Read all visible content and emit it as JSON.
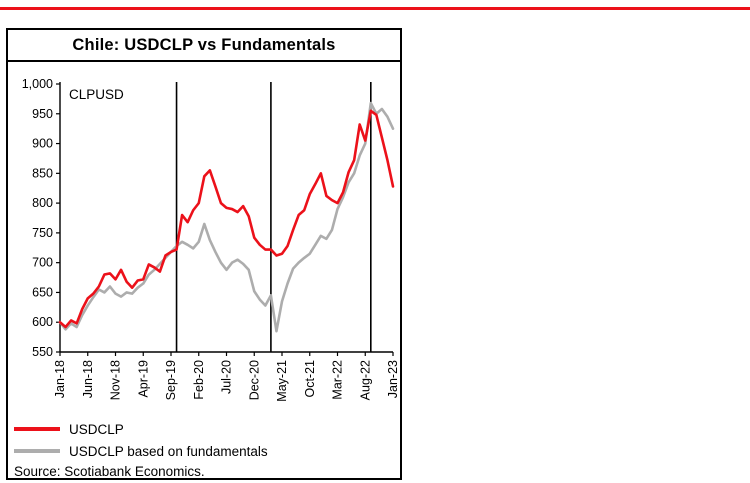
{
  "colors": {
    "red": "#EC111A",
    "gray": "#ADADAD",
    "black": "#000000"
  },
  "header": {
    "title": "Chile: USDCLP vs Fundamentals"
  },
  "legend": [
    {
      "label": "USDCLP"
    },
    {
      "label": "USDCLP based on fundamentals"
    }
  ],
  "source": "Source: Scotiabank Economics.",
  "chart_data": {
    "type": "line",
    "title": "Chile: USDCLP vs Fundamentals",
    "ylabel": "CLPUSD",
    "ylim": [
      550,
      1000
    ],
    "grid": false,
    "legend_position": "bottom-left",
    "ytick_values": [
      550,
      600,
      650,
      700,
      750,
      800,
      850,
      900,
      950,
      1000
    ],
    "ytick_labels": [
      "550",
      "600",
      "650",
      "700",
      "750",
      "800",
      "850",
      "900",
      "950",
      "1,000"
    ],
    "x": [
      "Jan-18",
      "Feb-18",
      "Mar-18",
      "Apr-18",
      "May-18",
      "Jun-18",
      "Jul-18",
      "Aug-18",
      "Sep-18",
      "Oct-18",
      "Nov-18",
      "Dec-18",
      "Jan-19",
      "Feb-19",
      "Mar-19",
      "Apr-19",
      "May-19",
      "Jun-19",
      "Jul-19",
      "Aug-19",
      "Sep-19",
      "Oct-19",
      "Nov-19",
      "Dec-19",
      "Jan-20",
      "Feb-20",
      "Mar-20",
      "Apr-20",
      "May-20",
      "Jun-20",
      "Jul-20",
      "Aug-20",
      "Sep-20",
      "Oct-20",
      "Nov-20",
      "Dec-20",
      "Jan-21",
      "Feb-21",
      "Mar-21",
      "Apr-21",
      "May-21",
      "Jun-21",
      "Jul-21",
      "Aug-21",
      "Sep-21",
      "Oct-21",
      "Nov-21",
      "Dec-21",
      "Jan-22",
      "Feb-22",
      "Mar-22",
      "Apr-22",
      "May-22",
      "Jun-22",
      "Jul-22",
      "Aug-22",
      "Sep-22",
      "Oct-22",
      "Nov-22",
      "Dec-22",
      "Jan-23"
    ],
    "xtick_indices": [
      0,
      5,
      10,
      15,
      20,
      25,
      30,
      35,
      40,
      45,
      50,
      55,
      60
    ],
    "event_lines": [
      "Oct-19",
      "Mar-21",
      "Sep-22"
    ],
    "series": [
      {
        "name": "USDCLP",
        "color": "#EC111A",
        "values": [
          600,
          592,
          603,
          598,
          622,
          640,
          648,
          660,
          680,
          682,
          672,
          688,
          668,
          658,
          670,
          672,
          697,
          692,
          685,
          712,
          718,
          722,
          780,
          768,
          788,
          800,
          845,
          855,
          828,
          800,
          792,
          790,
          785,
          795,
          778,
          742,
          730,
          722,
          722,
          712,
          715,
          728,
          755,
          780,
          788,
          815,
          832,
          850,
          812,
          805,
          800,
          818,
          852,
          872,
          932,
          905,
          955,
          948,
          910,
          872,
          828
        ]
      },
      {
        "name": "USDCLP based on fundamentals",
        "color": "#ADADAD",
        "values": [
          600,
          588,
          598,
          592,
          612,
          628,
          642,
          655,
          650,
          660,
          648,
          643,
          650,
          648,
          658,
          665,
          680,
          688,
          698,
          708,
          718,
          728,
          735,
          730,
          724,
          735,
          765,
          738,
          718,
          700,
          688,
          700,
          705,
          698,
          688,
          652,
          638,
          628,
          645,
          585,
          635,
          665,
          690,
          700,
          708,
          715,
          730,
          745,
          740,
          755,
          790,
          810,
          835,
          850,
          880,
          900,
          968,
          950,
          958,
          945,
          925
        ]
      }
    ]
  }
}
